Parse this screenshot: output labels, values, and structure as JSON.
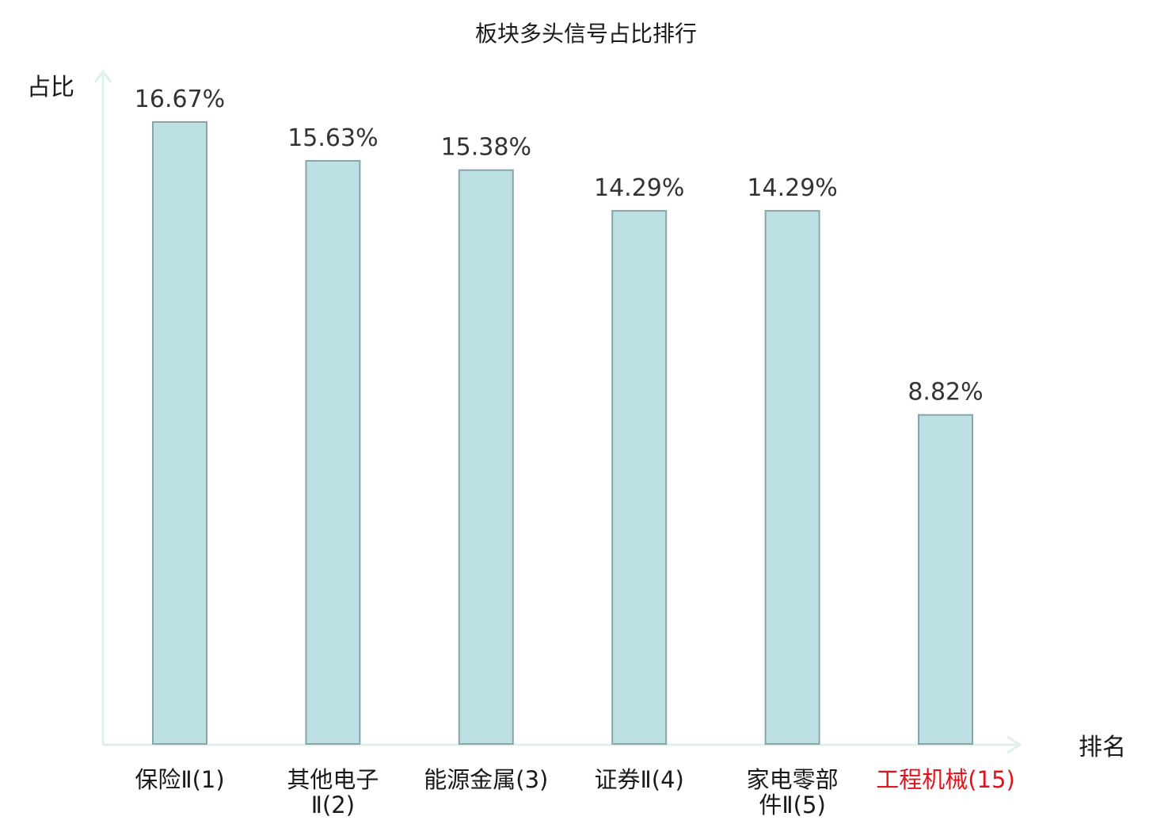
{
  "chart_data": {
    "type": "bar",
    "title": "板块多头信号占比排行",
    "ylabel": "占比",
    "xlabel": "排名",
    "categories": [
      [
        "保险Ⅱ(1)"
      ],
      [
        "其他电子",
        "Ⅱ(2)"
      ],
      [
        "能源金属(3)"
      ],
      [
        "证券Ⅱ(4)"
      ],
      [
        "家电零部",
        "件Ⅱ(5)"
      ],
      [
        "工程机械(15)"
      ]
    ],
    "values": [
      16.67,
      15.63,
      15.38,
      14.29,
      14.29,
      8.82
    ],
    "value_labels": [
      "16.67%",
      "15.63%",
      "15.38%",
      "14.29%",
      "14.29%",
      "8.82%"
    ],
    "highlight_index": 5,
    "grid": false,
    "ylim": [
      0,
      16.67
    ],
    "colors": {
      "bar_fill": "#bce0e3",
      "bar_stroke": "#88a6a8",
      "axis": "#dff0ee",
      "text": "#1a1a1a",
      "highlight_text": "#e0141e"
    }
  }
}
